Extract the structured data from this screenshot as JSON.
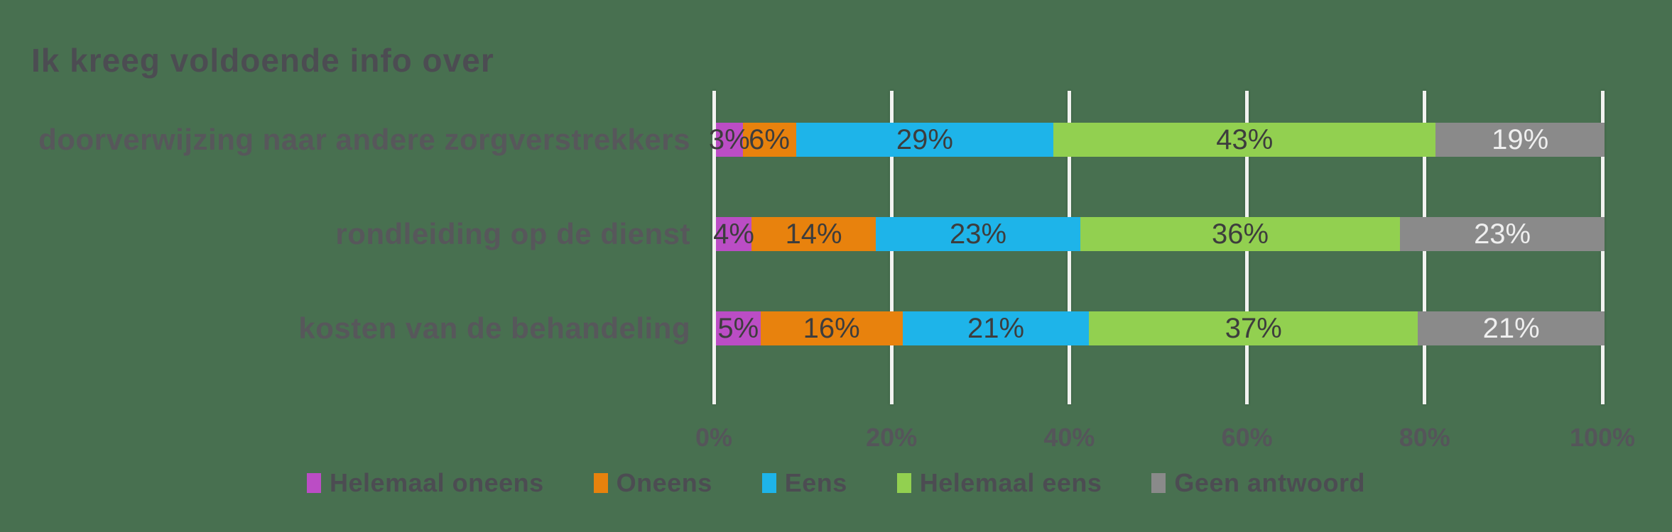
{
  "title": "Ik kreeg voldoende info over",
  "colors": {
    "background": "#487050",
    "gridline": "#f2f2f0",
    "title_text": "#4c4c52",
    "category_text": "#57575b",
    "axis_text": "#55555a",
    "legend_text": "#4c4c52"
  },
  "chart_data": {
    "type": "bar",
    "orientation": "horizontal-stacked",
    "title": "Ik kreeg voldoende info over",
    "categories": [
      "doorverwijzing naar andere zorgverstrekkers",
      "rondleiding op de dienst",
      "kosten van de behandeling"
    ],
    "series": [
      {
        "name": "Helemaal oneens",
        "color": "#bb4dc5",
        "label_color": "#3d3d3d",
        "values": [
          3,
          4,
          5
        ]
      },
      {
        "name": "Oneens",
        "color": "#e8820d",
        "label_color": "#3d3d3d",
        "values": [
          6,
          14,
          16
        ]
      },
      {
        "name": "Eens",
        "color": "#1eb4e9",
        "label_color": "#3d3d3d",
        "values": [
          29,
          23,
          21
        ]
      },
      {
        "name": "Helemaal eens",
        "color": "#92d050",
        "label_color": "#3d3d3d",
        "values": [
          43,
          36,
          37
        ]
      },
      {
        "name": "Geen antwoord",
        "color": "#8a8a8a",
        "label_color": "#efefef",
        "values": [
          19,
          23,
          21
        ]
      }
    ],
    "x_ticks": [
      "0%",
      "20%",
      "40%",
      "60%",
      "80%",
      "100%"
    ],
    "xlim": [
      0,
      100
    ],
    "grid": true,
    "legend_position": "bottom",
    "value_suffix": "%"
  }
}
